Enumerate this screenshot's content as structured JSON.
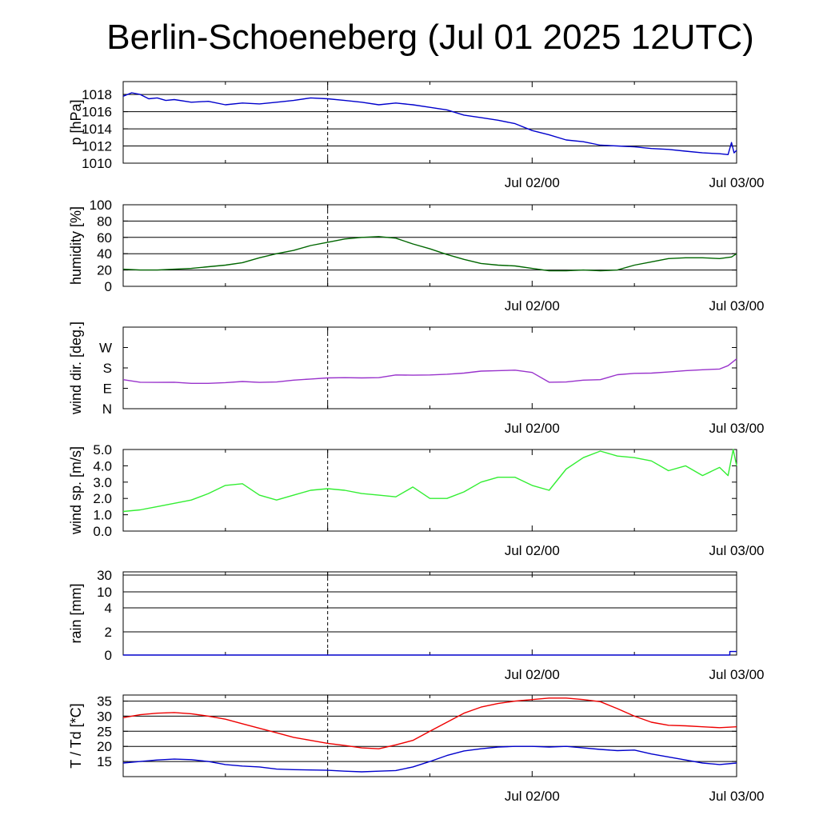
{
  "title": "Berlin-Schoeneberg (Jul 01 2025 12UTC)",
  "x_axis": {
    "tick_labels": [
      "Jul 02/00",
      "Jul 03/00"
    ],
    "start": "Jul 01 12UTC",
    "end": "Jul 03 00UTC",
    "major_tick_hours": [
      12,
      36
    ],
    "minor_tick_hours": [
      24
    ],
    "dashed_line_hour": 12
  },
  "chart_data": [
    {
      "type": "line",
      "ylabel": "p [hPa]",
      "ylim": [
        1010,
        1019.5
      ],
      "yticks": [
        1010,
        1012,
        1014,
        1016,
        1018
      ],
      "ytick_labels": [
        "1010",
        "1012",
        "1014",
        "1016",
        "1018"
      ],
      "grid": true,
      "series": [
        {
          "color": "#0000cc",
          "x": [
            0,
            0.5,
            1,
            1.5,
            2,
            2.5,
            3,
            4,
            5,
            6,
            7,
            8,
            9,
            10,
            11,
            12,
            13,
            14,
            15,
            16,
            17,
            18,
            19,
            20,
            21,
            22,
            23,
            24,
            25,
            26,
            27,
            28,
            29,
            30,
            31,
            32,
            33,
            34,
            35,
            35.5,
            35.7,
            35.85,
            36
          ],
          "y": [
            1017.8,
            1018.2,
            1018.0,
            1017.5,
            1017.6,
            1017.3,
            1017.4,
            1017.1,
            1017.2,
            1016.8,
            1017.0,
            1016.9,
            1017.1,
            1017.3,
            1017.6,
            1017.5,
            1017.3,
            1017.1,
            1016.8,
            1017.0,
            1016.8,
            1016.5,
            1016.2,
            1015.6,
            1015.3,
            1015.0,
            1014.6,
            1013.8,
            1013.3,
            1012.7,
            1012.5,
            1012.1,
            1012.0,
            1011.9,
            1011.7,
            1011.6,
            1011.4,
            1011.2,
            1011.1,
            1011.0,
            1012.4,
            1011.2,
            1011.5
          ]
        }
      ]
    },
    {
      "type": "line",
      "ylabel": "humidity [%]",
      "ylim": [
        0,
        100
      ],
      "yticks": [
        0,
        20,
        40,
        60,
        80,
        100
      ],
      "ytick_labels": [
        "0",
        "20",
        "40",
        "60",
        "80",
        "100"
      ],
      "grid": true,
      "series": [
        {
          "color": "#006600",
          "x": [
            0,
            1,
            2,
            3,
            4,
            5,
            6,
            7,
            8,
            9,
            10,
            11,
            12,
            13,
            14,
            15,
            16,
            17,
            18,
            19,
            20,
            21,
            22,
            23,
            24,
            25,
            26,
            27,
            28,
            29,
            30,
            31,
            32,
            33,
            34,
            35,
            35.7,
            36
          ],
          "y": [
            21,
            20,
            20,
            21,
            22,
            24,
            26,
            29,
            35,
            40,
            44,
            50,
            54,
            58,
            60,
            61,
            59,
            52,
            46,
            39,
            33,
            28,
            26,
            25,
            22,
            19,
            19,
            20,
            19,
            20,
            26,
            30,
            34,
            35,
            35,
            34,
            36,
            40
          ]
        }
      ]
    },
    {
      "type": "line",
      "ylabel": "wind dir. [deg.]",
      "ylim": [
        0,
        360
      ],
      "yticks": [
        0,
        90,
        180,
        270
      ],
      "ytick_labels": [
        "N",
        "E",
        "S",
        "W"
      ],
      "grid": false,
      "series": [
        {
          "color": "#9933cc",
          "x": [
            0,
            1,
            2,
            3,
            4,
            5,
            6,
            7,
            8,
            9,
            10,
            11,
            12,
            13,
            14,
            15,
            16,
            17,
            18,
            19,
            20,
            21,
            22,
            23,
            24,
            25,
            26,
            27,
            28,
            29,
            30,
            31,
            32,
            33,
            34,
            35,
            35.5,
            36
          ],
          "y": [
            128,
            117,
            116,
            117,
            112,
            112,
            115,
            120,
            116,
            118,
            126,
            131,
            136,
            137,
            136,
            137,
            149,
            148,
            149,
            152,
            157,
            166,
            168,
            170,
            160,
            117,
            118,
            126,
            128,
            150,
            156,
            157,
            162,
            168,
            172,
            175,
            190,
            220
          ]
        }
      ]
    },
    {
      "type": "line",
      "ylabel": "wind sp. [m/s]",
      "ylim": [
        0,
        5
      ],
      "yticks": [
        0,
        1,
        2,
        3,
        4,
        5
      ],
      "ytick_labels": [
        "0.0",
        "1.0",
        "2.0",
        "3.0",
        "4.0",
        "5.0"
      ],
      "grid": false,
      "series": [
        {
          "color": "#33ee33",
          "x": [
            0,
            1,
            2,
            3,
            4,
            5,
            6,
            7,
            8,
            9,
            10,
            11,
            12,
            13,
            14,
            15,
            16,
            17,
            18,
            19,
            20,
            21,
            22,
            23,
            24,
            25,
            26,
            27,
            28,
            29,
            30,
            31,
            32,
            33,
            34,
            35,
            35.5,
            35.8,
            36
          ],
          "y": [
            1.2,
            1.3,
            1.5,
            1.7,
            1.9,
            2.3,
            2.8,
            2.9,
            2.2,
            1.9,
            2.2,
            2.5,
            2.6,
            2.5,
            2.3,
            2.2,
            2.1,
            2.7,
            2.0,
            2.0,
            2.4,
            3.0,
            3.3,
            3.3,
            2.8,
            2.5,
            3.8,
            4.5,
            4.9,
            4.6,
            4.5,
            4.3,
            3.7,
            4.0,
            3.4,
            3.9,
            3.4,
            5.0,
            4.0
          ]
        }
      ]
    },
    {
      "type": "line",
      "ylabel": "rain [mm]",
      "yticks": [
        0,
        2,
        4,
        10,
        30
      ],
      "ytick_labels": [
        "0",
        "2",
        "4",
        "10",
        "30"
      ],
      "grid": true,
      "series": [
        {
          "color": "#0000cc",
          "x": [
            0,
            35.6,
            35.6,
            36
          ],
          "y": [
            0,
            0,
            0.3,
            0.3
          ]
        }
      ]
    },
    {
      "type": "line",
      "ylabel": "T / Td [*C]",
      "ylim": [
        10,
        37
      ],
      "yticks": [
        15,
        20,
        25,
        30,
        35
      ],
      "ytick_labels": [
        "15",
        "20",
        "25",
        "30",
        "35"
      ],
      "grid": true,
      "series": [
        {
          "color": "#ee0000",
          "x": [
            0,
            1,
            2,
            3,
            4,
            5,
            6,
            7,
            8,
            9,
            10,
            11,
            12,
            13,
            14,
            15,
            16,
            17,
            18,
            19,
            20,
            21,
            22,
            23,
            24,
            25,
            26,
            27,
            28,
            29,
            30,
            31,
            32,
            33,
            34,
            35,
            36
          ],
          "y": [
            29.5,
            30.5,
            31,
            31.2,
            30.8,
            30,
            29,
            27.5,
            26,
            24.5,
            23,
            22,
            21,
            20.3,
            19.5,
            19.2,
            20.5,
            22,
            25,
            28,
            31,
            33,
            34.2,
            35,
            35.5,
            36,
            36,
            35.5,
            34.8,
            32.5,
            30,
            28,
            27,
            26.8,
            26.5,
            26.2,
            26.5
          ]
        },
        {
          "color": "#0000cc",
          "x": [
            0,
            1,
            2,
            3,
            4,
            5,
            6,
            7,
            8,
            9,
            10,
            11,
            12,
            13,
            14,
            15,
            16,
            17,
            18,
            19,
            20,
            21,
            22,
            23,
            24,
            25,
            26,
            27,
            28,
            29,
            30,
            31,
            32,
            33,
            34,
            35,
            36
          ],
          "y": [
            14.5,
            15,
            15.5,
            15.8,
            15.6,
            15,
            14,
            13.5,
            13.2,
            12.5,
            12.3,
            12.2,
            12.1,
            11.8,
            11.6,
            11.8,
            12,
            13.2,
            15,
            17,
            18.5,
            19.2,
            19.8,
            20,
            20,
            19.8,
            20,
            19.5,
            19,
            18.6,
            18.8,
            17.5,
            16.5,
            15.5,
            14.5,
            14,
            14.5
          ]
        }
      ]
    }
  ]
}
